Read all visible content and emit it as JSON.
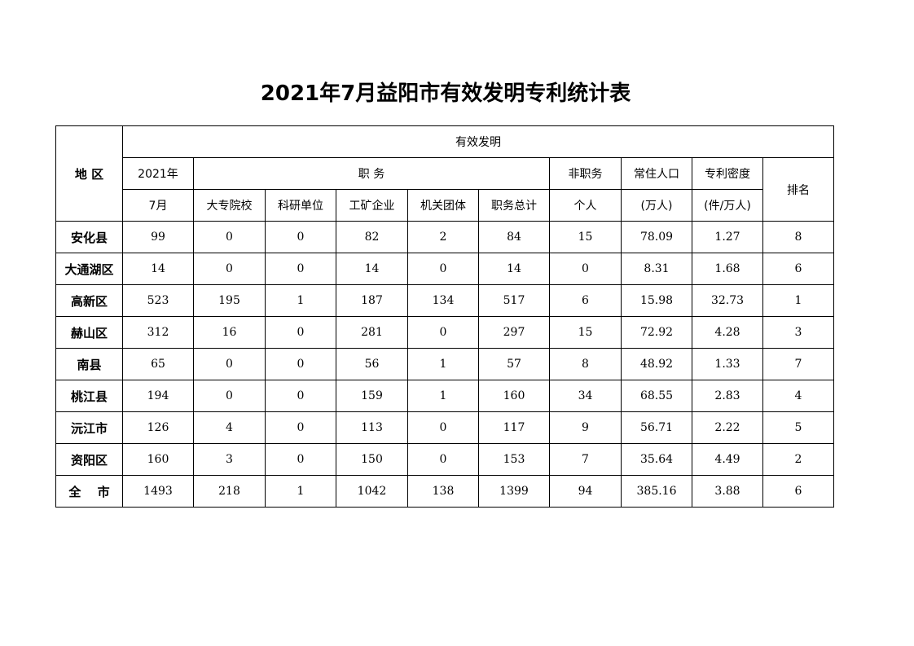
{
  "title": "2021年7月益阳市有效发明专利统计表",
  "header": {
    "region": "地 区",
    "group": "有效发明",
    "year": "2021年",
    "month": "7月",
    "service": "职 务",
    "nonservice": "非职务",
    "personal": "个人",
    "population": "常住人口",
    "population_unit": "(万人)",
    "density": "专利密度",
    "density_unit": "(件/万人)",
    "rank": "排名",
    "sub": [
      "大专院校",
      "科研单位",
      "工矿企业",
      "机关团体",
      "职务总计"
    ]
  },
  "rows": [
    [
      "安化县",
      "99",
      "0",
      "0",
      "82",
      "2",
      "84",
      "15",
      "78.09",
      "1.27",
      "8"
    ],
    [
      "大通湖区",
      "14",
      "0",
      "0",
      "14",
      "0",
      "14",
      "0",
      "8.31",
      "1.68",
      "6"
    ],
    [
      "高新区",
      "523",
      "195",
      "1",
      "187",
      "134",
      "517",
      "6",
      "15.98",
      "32.73",
      "1"
    ],
    [
      "赫山区",
      "312",
      "16",
      "0",
      "281",
      "0",
      "297",
      "15",
      "72.92",
      "4.28",
      "3"
    ],
    [
      "南县",
      "65",
      "0",
      "0",
      "56",
      "1",
      "57",
      "8",
      "48.92",
      "1.33",
      "7"
    ],
    [
      "桃江县",
      "194",
      "0",
      "0",
      "159",
      "1",
      "160",
      "34",
      "68.55",
      "2.83",
      "4"
    ],
    [
      "沅江市",
      "126",
      "4",
      "0",
      "113",
      "0",
      "117",
      "9",
      "56.71",
      "2.22",
      "5"
    ],
    [
      "资阳区",
      "160",
      "3",
      "0",
      "150",
      "0",
      "153",
      "7",
      "35.64",
      "4.49",
      "2"
    ],
    [
      "全　 市",
      "1493",
      "218",
      "1",
      "1042",
      "138",
      "1399",
      "94",
      "385.16",
      "3.88",
      "6"
    ]
  ]
}
